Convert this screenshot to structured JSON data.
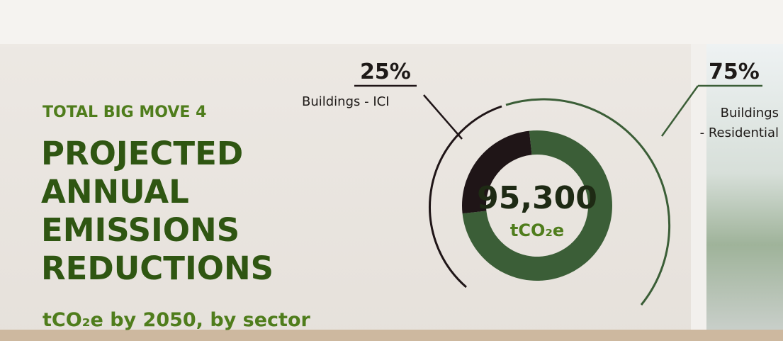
{
  "chart_data": {
    "type": "pie",
    "kicker": "TOTAL BIG MOVE 4",
    "title": "PROJECTED ANNUAL EMISSIONS REDUCTIONS",
    "subtitle": "tCO₂e by 2050, by sector",
    "center_label": "95,300",
    "center_unit": "tCO₂e",
    "categories": [
      "Buildings\n- Residential",
      "Buildings - ICI"
    ],
    "values": [
      75,
      25
    ],
    "value_labels": [
      "75%",
      "25%"
    ],
    "colors": [
      "#3b5e37",
      "#1f1517"
    ]
  }
}
